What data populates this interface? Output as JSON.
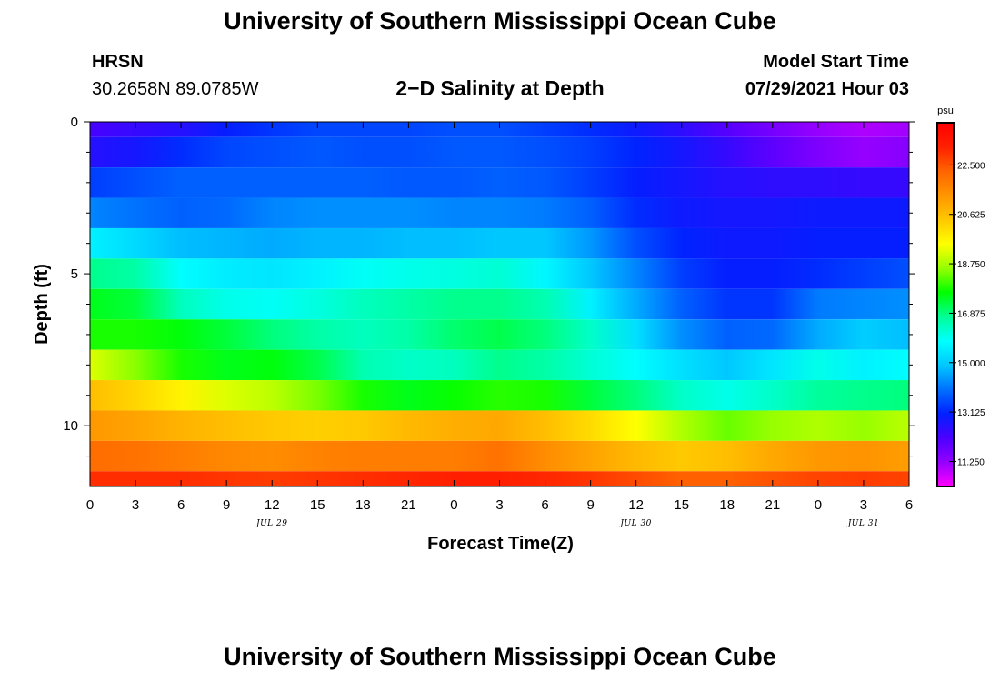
{
  "page": {
    "title_top": "University of Southern Mississippi Ocean Cube",
    "title_bottom": "University of Southern Mississippi Ocean Cube",
    "station_id": "HRSN",
    "station_coords": "30.2658N  89.0785W",
    "plot_title": "2−D Salinity at Depth",
    "model_start_label": "Model Start Time",
    "model_start_value": "07/29/2021 Hour 03"
  },
  "chart_data": {
    "type": "heatmap",
    "title": "2−D Salinity at Depth",
    "xlabel": "Forecast Time(Z)",
    "ylabel": "Depth (ft)",
    "x_hours": [
      0,
      3,
      6,
      9,
      12,
      15,
      18,
      21,
      24,
      27,
      30,
      33,
      36,
      39,
      42,
      45,
      48,
      51,
      54
    ],
    "x_tick_labels": [
      "0",
      "3",
      "6",
      "9",
      "12",
      "15",
      "18",
      "21",
      "0",
      "3",
      "6",
      "9",
      "12",
      "15",
      "18",
      "21",
      "0",
      "3",
      "6"
    ],
    "date_labels": [
      {
        "label": "JUL 29",
        "hour": 12
      },
      {
        "label": "JUL 30",
        "hour": 36
      },
      {
        "label": "JUL 31",
        "hour": 51
      }
    ],
    "xlim": [
      0,
      54
    ],
    "ylim": [
      12,
      0
    ],
    "y_tick_labels": [
      "0",
      "5",
      "10"
    ],
    "y_ticks": [
      0,
      5,
      10
    ],
    "y_minor_ticks": [
      1,
      2,
      3,
      4,
      6,
      7,
      8,
      9,
      11
    ],
    "depth_layers_ft": [
      0.5,
      1.5,
      2.5,
      3.5,
      4.5,
      5.5,
      6.5,
      7.5,
      8.5,
      9.5,
      10.5,
      11.5
    ],
    "salinity_psu": [
      [
        12.6,
        12.8,
        13.2,
        13.5,
        13.6,
        13.7,
        13.6,
        13.6,
        13.7,
        13.7,
        13.6,
        13.4,
        13.1,
        12.8,
        12.4,
        11.9,
        11.5,
        11.2,
        11.4
      ],
      [
        13.4,
        13.6,
        13.8,
        13.8,
        13.8,
        13.8,
        13.8,
        13.7,
        13.7,
        13.8,
        13.7,
        13.4,
        13.0,
        12.8,
        12.6,
        12.5,
        12.5,
        12.4,
        12.4
      ],
      [
        14.2,
        14.0,
        13.8,
        13.9,
        14.2,
        14.3,
        14.3,
        14.3,
        14.2,
        14.2,
        14.1,
        13.8,
        13.2,
        12.9,
        12.8,
        12.8,
        12.9,
        12.9,
        12.9
      ],
      [
        15.6,
        15.2,
        14.8,
        14.7,
        14.6,
        14.7,
        14.7,
        14.8,
        14.8,
        14.9,
        14.9,
        14.4,
        13.6,
        13.1,
        12.9,
        12.9,
        13.0,
        13.0,
        13.0
      ],
      [
        16.8,
        16.6,
        15.8,
        15.5,
        15.4,
        15.6,
        15.9,
        16.0,
        16.1,
        16.2,
        15.7,
        14.9,
        14.2,
        13.4,
        13.0,
        13.0,
        13.2,
        13.4,
        13.6
      ],
      [
        17.5,
        17.3,
        16.4,
        16.0,
        15.9,
        16.1,
        16.4,
        16.6,
        16.8,
        16.8,
        16.5,
        15.6,
        14.6,
        13.8,
        13.3,
        13.3,
        14.1,
        14.2,
        14.3
      ],
      [
        17.8,
        17.8,
        17.6,
        17.3,
        16.9,
        16.6,
        16.4,
        16.6,
        17.0,
        17.2,
        16.9,
        16.3,
        15.3,
        14.3,
        13.8,
        13.9,
        14.6,
        15.0,
        14.8
      ],
      [
        19.2,
        18.5,
        17.8,
        17.5,
        17.6,
        17.2,
        16.5,
        16.3,
        16.4,
        16.8,
        16.6,
        16.2,
        15.8,
        15.3,
        14.9,
        15.4,
        16.0,
        15.6,
        15.8
      ],
      [
        20.6,
        20.2,
        19.7,
        19.2,
        18.9,
        18.4,
        17.8,
        17.5,
        17.7,
        17.9,
        17.8,
        17.3,
        16.9,
        16.3,
        16.0,
        16.3,
        16.7,
        16.8,
        16.9
      ],
      [
        21.3,
        21.1,
        20.8,
        20.6,
        20.4,
        20.3,
        20.4,
        20.7,
        20.9,
        21.0,
        20.6,
        20.1,
        19.5,
        18.8,
        18.3,
        18.6,
        18.8,
        18.6,
        18.9
      ],
      [
        22.1,
        22.0,
        21.8,
        21.6,
        21.5,
        21.7,
        21.8,
        21.8,
        21.8,
        22.0,
        21.5,
        21.1,
        20.7,
        20.4,
        20.6,
        21.0,
        21.3,
        21.4,
        21.2
      ],
      [
        23.0,
        23.0,
        23.0,
        22.9,
        22.8,
        22.9,
        23.0,
        23.1,
        23.2,
        23.2,
        23.1,
        22.9,
        22.6,
        22.3,
        22.3,
        22.5,
        22.7,
        22.8,
        22.7
      ]
    ],
    "surface_band_psu": [
      12.2,
      12.4,
      12.6,
      13.0,
      13.3,
      13.5,
      13.5,
      13.5,
      13.6,
      13.6,
      13.4,
      13.2,
      12.9,
      12.5,
      12.0,
      11.6,
      11.2,
      11.0,
      11.1
    ],
    "colorbar": {
      "unit_label": "psu",
      "range": [
        10.3,
        24.1
      ],
      "tick_values": [
        11.25,
        13.125,
        15.0,
        16.875,
        18.75,
        20.625,
        22.5
      ],
      "tick_labels": [
        "11.250",
        "13.125",
        "15.000",
        "16.875",
        "18.750",
        "20.625",
        "22.500"
      ],
      "colors": [
        "#ff00ff",
        "#9400ff",
        "#4b00ff",
        "#0020ff",
        "#0070ff",
        "#00c8ff",
        "#00ffff",
        "#00ff96",
        "#00ff00",
        "#96ff00",
        "#ffff00",
        "#ffc800",
        "#ff9600",
        "#ff6400",
        "#ff2000",
        "#ff0000"
      ]
    }
  }
}
